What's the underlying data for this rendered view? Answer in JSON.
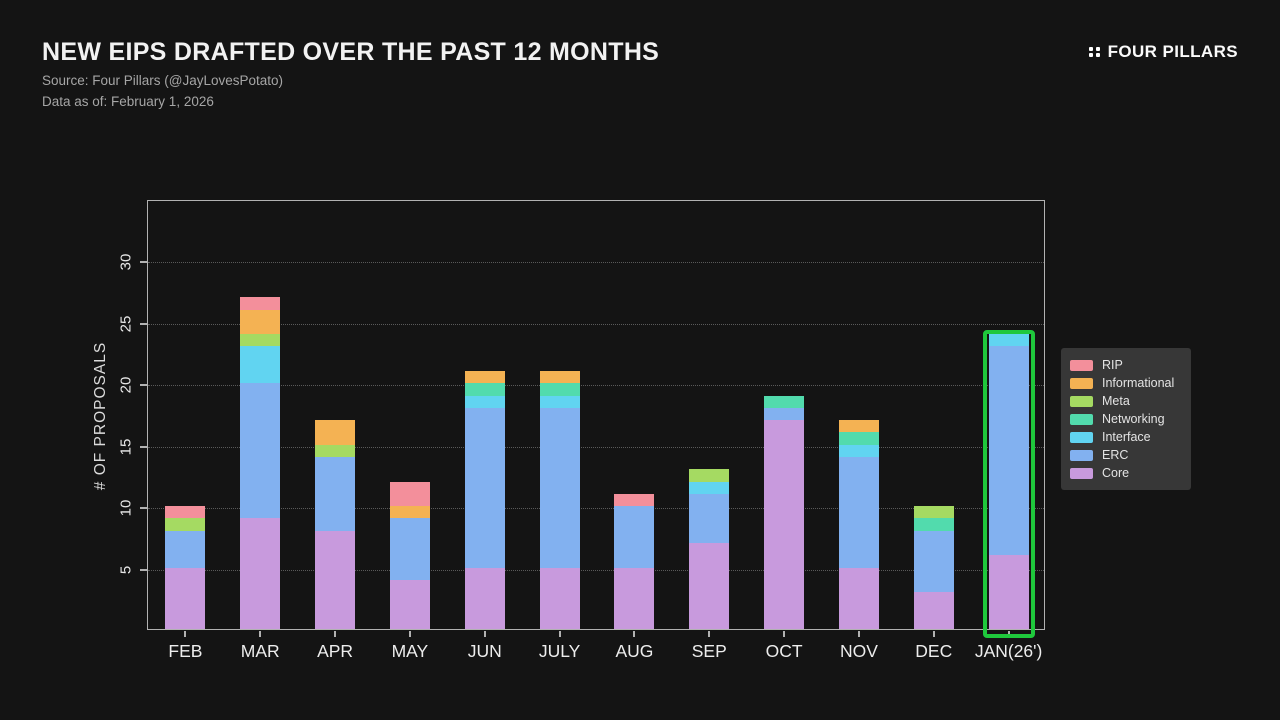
{
  "header": {
    "title": "NEW EIPS DRAFTED OVER THE PAST 12 MONTHS",
    "source": "Source: Four Pillars (@JayLovesPotato)",
    "data_as_of": "Data as of: February 1, 2026",
    "brand": "FOUR PILLARS"
  },
  "colors": {
    "background": "#141414",
    "frame": "#b2b2b2",
    "highlight_green": "#1fc83c",
    "legend_bg": "#373737"
  },
  "chart_data": {
    "type": "bar",
    "stacked": true,
    "title": "NEW EIPS DRAFTED OVER THE PAST 12 MONTHS",
    "xlabel": "",
    "ylabel": "# OF PROPOSALS",
    "ylim": [
      0,
      35
    ],
    "yticks": [
      5,
      10,
      15,
      20,
      25,
      30
    ],
    "grid": "horizontal-dotted",
    "legend_position": "right",
    "categories": [
      "FEB",
      "MAR",
      "APR",
      "MAY",
      "JUN",
      "JULY",
      "AUG",
      "SEP",
      "OCT",
      "NOV",
      "DEC",
      "JAN(26')"
    ],
    "series": [
      {
        "name": "Core",
        "color": "#c89add",
        "values": [
          5,
          9,
          8,
          4,
          5,
          5,
          5,
          7,
          17,
          5,
          3,
          6
        ]
      },
      {
        "name": "ERC",
        "color": "#82b1f0",
        "values": [
          3,
          11,
          6,
          5,
          13,
          13,
          5,
          4,
          1,
          9,
          5,
          17
        ]
      },
      {
        "name": "Interface",
        "color": "#61d4f1",
        "values": [
          0,
          3,
          0,
          0,
          1,
          1,
          0,
          1,
          0,
          1,
          0,
          1
        ]
      },
      {
        "name": "Networking",
        "color": "#52dbad",
        "values": [
          0,
          0,
          0,
          0,
          1,
          1,
          0,
          0,
          1,
          1,
          1,
          0
        ]
      },
      {
        "name": "Meta",
        "color": "#a5da62",
        "values": [
          1,
          1,
          1,
          0,
          0,
          0,
          0,
          1,
          0,
          0,
          1,
          0
        ]
      },
      {
        "name": "Informational",
        "color": "#f4b253",
        "values": [
          0,
          2,
          2,
          1,
          1,
          1,
          0,
          0,
          0,
          1,
          0,
          0
        ]
      },
      {
        "name": "RIP",
        "color": "#f38f9b",
        "values": [
          1,
          1,
          0,
          2,
          0,
          0,
          1,
          0,
          0,
          0,
          0,
          0
        ]
      }
    ],
    "totals": [
      10,
      27,
      17,
      12,
      21,
      21,
      11,
      13,
      19,
      17,
      10,
      24
    ],
    "highlight": {
      "category": "JAN(26')",
      "color": "#1fc83c"
    }
  },
  "legend": {
    "items": [
      {
        "label": "RIP",
        "color": "#f38f9b"
      },
      {
        "label": "Informational",
        "color": "#f4b253"
      },
      {
        "label": "Meta",
        "color": "#a5da62"
      },
      {
        "label": "Networking",
        "color": "#52dbad"
      },
      {
        "label": "Interface",
        "color": "#61d4f1"
      },
      {
        "label": "ERC",
        "color": "#82b1f0"
      },
      {
        "label": "Core",
        "color": "#c89add"
      }
    ]
  }
}
